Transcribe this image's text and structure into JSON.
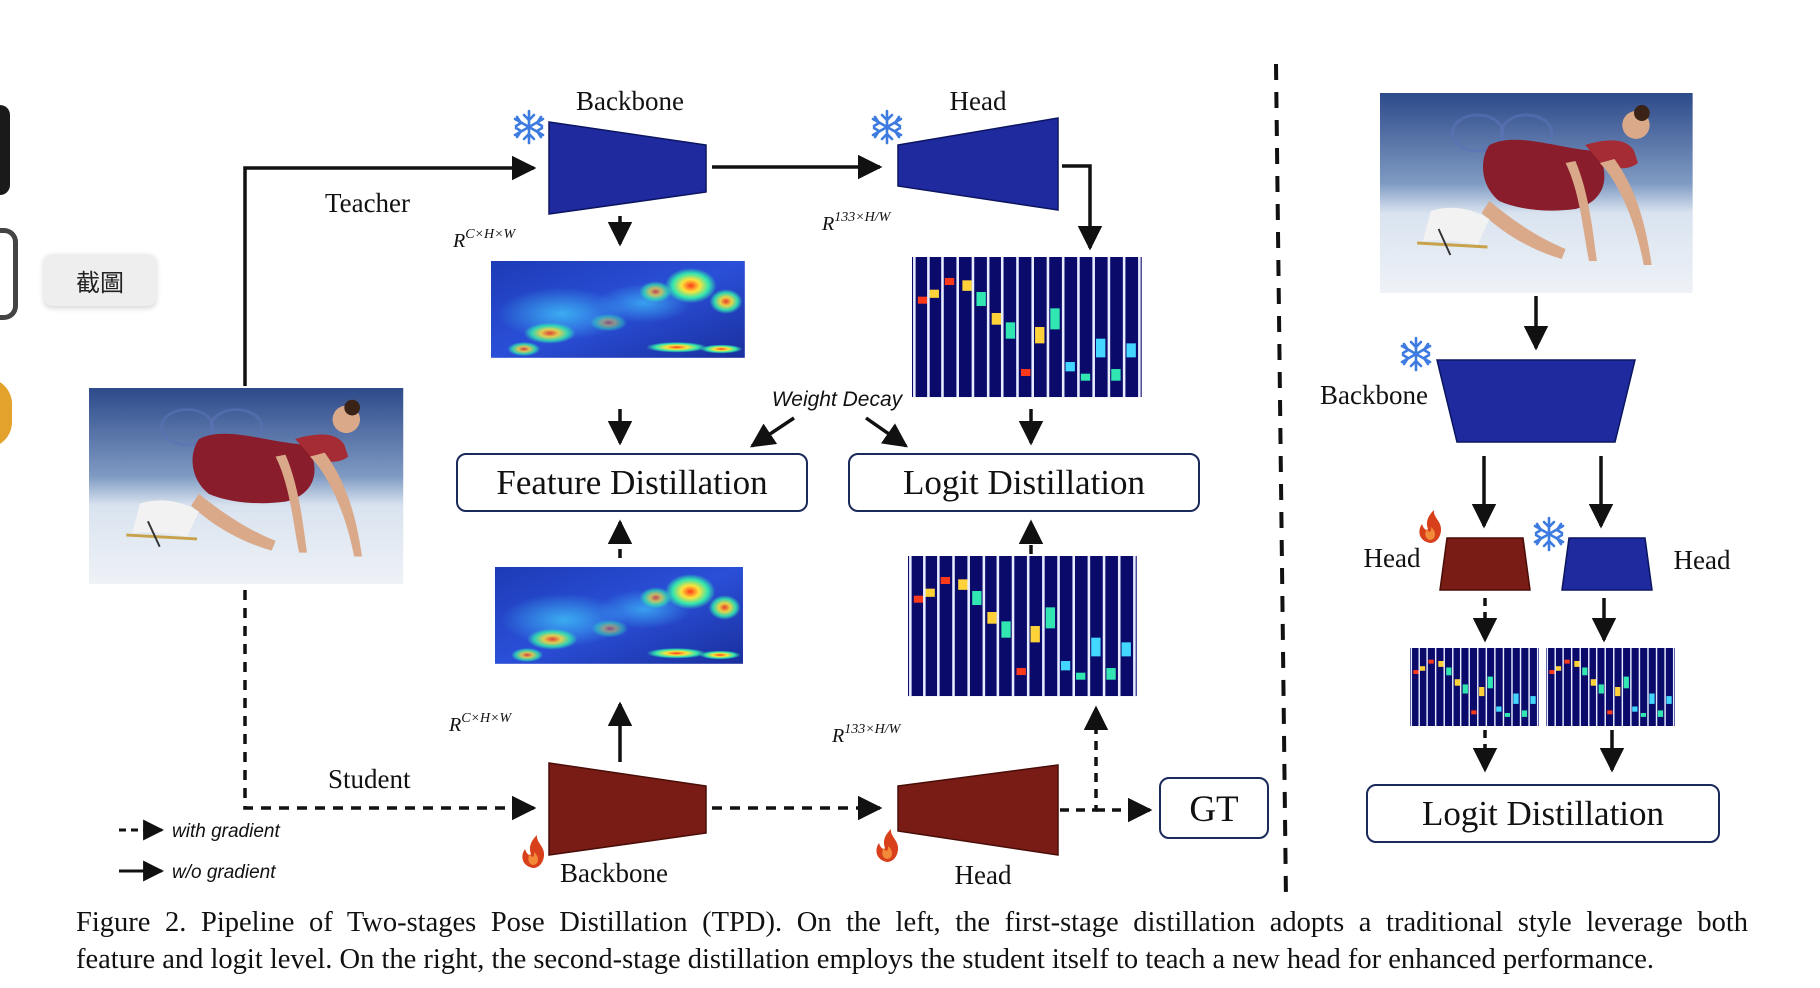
{
  "sidebar": {
    "tooltip_label": "截圖"
  },
  "teacher": {
    "branch_label": "Teacher",
    "backbone_label": "Backbone",
    "head_label": "Head",
    "feature_dim": "R",
    "feature_dim_sup": "C×H×W",
    "logit_dim": "R",
    "logit_dim_sup": "133×H/W"
  },
  "student": {
    "branch_label": "Student",
    "backbone_label": "Backbone",
    "head_label": "Head",
    "feature_dim": "R",
    "feature_dim_sup": "C×H×W",
    "logit_dim": "R",
    "logit_dim_sup": "133×H/W"
  },
  "center": {
    "weight_decay": "Weight Decay",
    "feature_distillation": "Feature Distillation",
    "logit_distillation": "Logit Distillation",
    "gt": "GT"
  },
  "legend": {
    "with_gradient": "with gradient",
    "without_gradient": "w/o gradient"
  },
  "right_panel": {
    "backbone_label": "Backbone",
    "head_left_label": "Head",
    "head_right_label": "Head",
    "logit_distillation": "Logit Distillation"
  },
  "caption": {
    "line1": "Figure 2. Pipeline of Two-stages Pose Distillation (TPD). On the left, the first-stage distillation adopts a traditional style leverage both",
    "line2": "feature and logit level. On the right, the second-stage distillation employs the student itself to teach a new head for enhanced performance."
  },
  "colors": {
    "frozen_blue": "#1e2a9e",
    "trainable_red": "#7a1c16",
    "snowflake": "#3d7be0",
    "flame": "#d8401c",
    "heatmap_bg": "#0a0a6a"
  },
  "icons": [
    "snowflake-icon",
    "flame-icon",
    "skater-photo",
    "feature-heatmap",
    "logit-heatmap"
  ]
}
